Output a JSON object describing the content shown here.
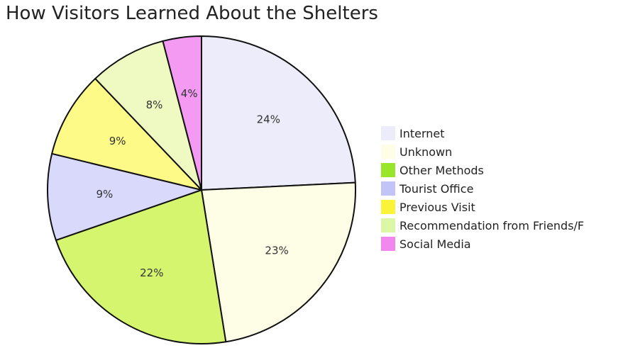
{
  "chart_data": {
    "type": "pie",
    "title": "How Visitors Learned About the Shelters",
    "legend_position": "right",
    "slices": [
      {
        "name": "Internet",
        "value": 24,
        "label": "24%",
        "color": "#ececfb",
        "legend_label": "Internet"
      },
      {
        "name": "Unknown",
        "value": 23,
        "label": "23%",
        "color": "#fefde6",
        "legend_label": "Unknown"
      },
      {
        "name": "Other Methods",
        "value": 22,
        "label": "22%",
        "color": "#d5f56e",
        "legend_label": "Other Methods"
      },
      {
        "name": "Tourist Office",
        "value": 9,
        "label": "9%",
        "color": "#d8d9fb",
        "legend_label": "Tourist Office"
      },
      {
        "name": "Previous Visit",
        "value": 9,
        "label": "9%",
        "color": "#fdfa87",
        "legend_label": "Previous Visit"
      },
      {
        "name": "Recommendation from Friends/Family",
        "value": 8,
        "label": "8%",
        "color": "#eefac2",
        "legend_label": "Recommendation from Friends/F"
      },
      {
        "name": "Social Media",
        "value": 4,
        "label": "4%",
        "color": "#f59af3",
        "legend_label": "Social Media"
      }
    ],
    "legend_swatch_colors": [
      "#ececfb",
      "#fefde6",
      "#99e52a",
      "#c2c3f7",
      "#fbf337",
      "#dcf8a6",
      "#f387f0"
    ]
  }
}
